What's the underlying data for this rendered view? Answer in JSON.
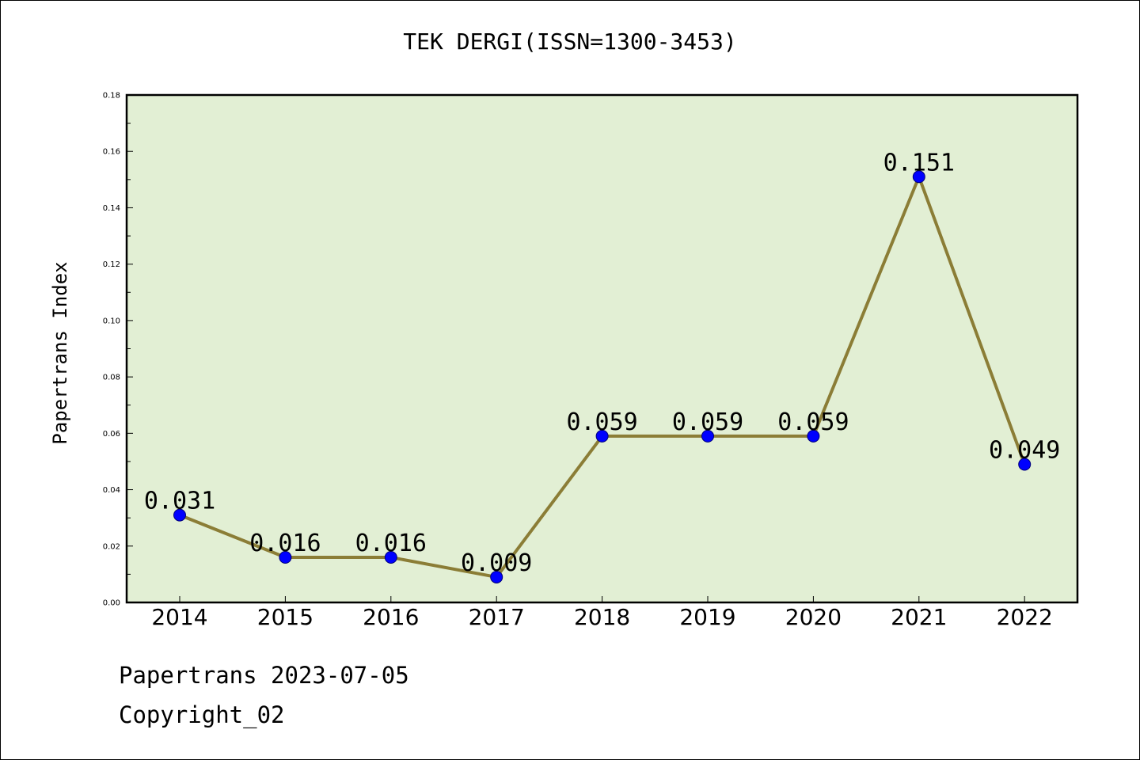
{
  "chart_data": {
    "type": "line",
    "title": "TEK DERGI(ISSN=1300-3453)",
    "xlabel": "",
    "ylabel": "Papertrans Index",
    "categories": [
      "2014",
      "2015",
      "2016",
      "2017",
      "2018",
      "2019",
      "2020",
      "2021",
      "2022"
    ],
    "series": [
      {
        "values": [
          0.031,
          0.016,
          0.016,
          0.009,
          0.059,
          0.059,
          0.059,
          0.151,
          0.049
        ],
        "labels": [
          "0.031",
          "0.016",
          "0.016",
          "0.009",
          "0.059",
          "0.059",
          "0.059",
          "0.151",
          "0.049"
        ]
      }
    ],
    "ylim": [
      0,
      0.18
    ],
    "yticks": [
      "0.00",
      "0.02",
      "0.04",
      "0.06",
      "0.08",
      "0.10",
      "0.12",
      "0.14",
      "0.16",
      "0.18"
    ],
    "grid": false,
    "legend": "none",
    "colors": {
      "plot_background": "#e2efd4",
      "line": "#8b7d36",
      "marker": "#0000ff",
      "axis": "#000000"
    }
  },
  "footer": {
    "date_line": "Papertrans 2023-07-05",
    "copyright_line": "Copyright_02"
  }
}
